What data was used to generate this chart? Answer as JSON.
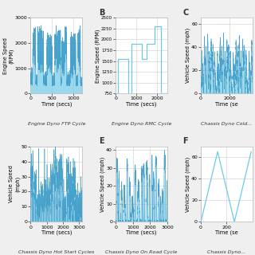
{
  "background_color": "#efefef",
  "panel_bg": "#ffffff",
  "line_color_fill": "#6fc8e8",
  "line_color_edge": "#3a9bc8",
  "grid_color": "#cccccc",
  "tick_label_size": 4.5,
  "axis_label_size": 4.8,
  "caption_size": 4.5,
  "panel_label_size": 7,
  "panel_A_title": "Engine Dyno FTP Cycle",
  "panel_B_title": "Engine Dyno RMC Cycle",
  "panel_C_title": "Chassis Dyno Cold...",
  "panel_D_title": "Chassis Dyno Hot Start Cycles",
  "panel_E_title": "Chassis Dyno On Road Cycle",
  "panel_F_title": "Chassis Dyno...",
  "rmc_time": [
    0,
    100,
    100,
    600,
    600,
    750,
    750,
    1250,
    1250,
    1500,
    1500,
    1900,
    1900,
    2200,
    2200,
    2400,
    2400,
    2500
  ],
  "rmc_speed": [
    750,
    750,
    1550,
    1550,
    750,
    750,
    1900,
    1900,
    1550,
    1550,
    1900,
    1900,
    2300,
    2300,
    750,
    750,
    750,
    750
  ],
  "rmc_ylim": [
    750,
    2500
  ],
  "rmc_xlim": [
    0,
    2500
  ],
  "highway_time": [
    0,
    130,
    260,
    390
  ],
  "highway_speed": [
    0,
    65,
    0,
    65
  ]
}
